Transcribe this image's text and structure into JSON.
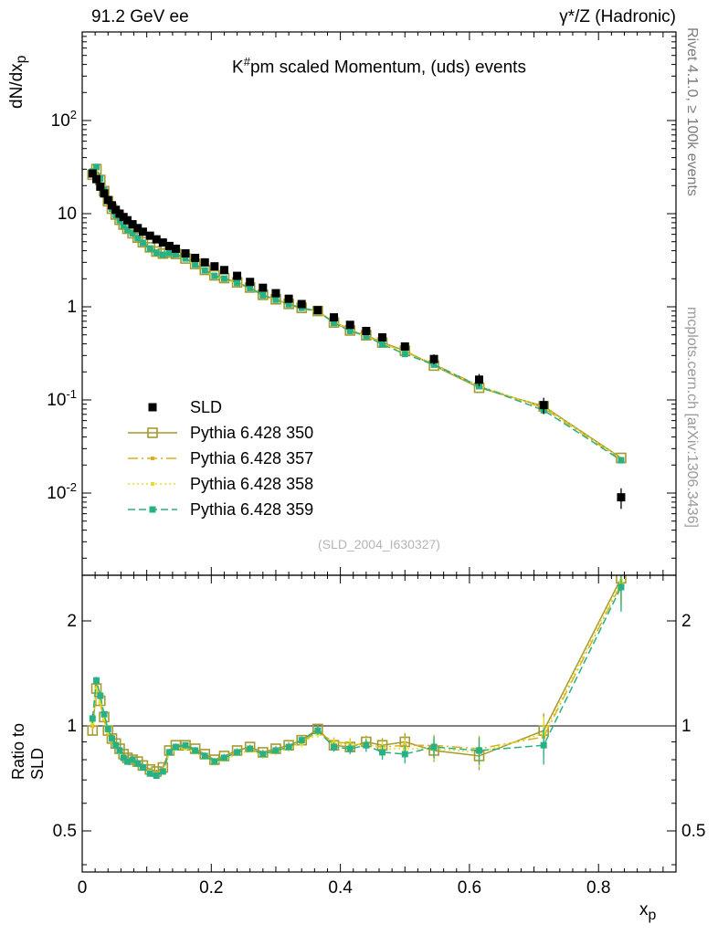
{
  "header": {
    "left": "91.2 GeV ee",
    "right": "γ*/Z (Hadronic)"
  },
  "title": {
    "base": "K",
    "sup": "#",
    "rest": "pm scaled Momentum, (uds) events"
  },
  "watermark": "(SLD_2004_I630327)",
  "side_notes": {
    "top": "Rivet 4.1.0, ≥ 100k events",
    "bottom": "mcplots.cern.ch [arXiv:1306.3436]"
  },
  "axes": {
    "y_main": {
      "base": "dN/dx",
      "sub": "p"
    },
    "y_ratio": {
      "label": "Ratio to SLD"
    },
    "x": {
      "base": "x",
      "sub": "p"
    }
  },
  "chart_data": {
    "type": "line",
    "title": "K#pm scaled Momentum, (uds) events",
    "xlabel": "x_p",
    "ylabel": "dN/dx_p",
    "ylabel_ratio": "Ratio to SLD",
    "xlim": [
      0,
      0.92
    ],
    "main_ylim": [
      0.0013,
      900
    ],
    "ratio_ylim": [
      0.38,
      2.7
    ],
    "yscale": "log",
    "xtick_labels": [
      {
        "v": 0,
        "t": "0"
      },
      {
        "v": 0.2,
        "t": "0.2"
      },
      {
        "v": 0.4,
        "t": "0.4"
      },
      {
        "v": 0.6,
        "t": "0.6"
      },
      {
        "v": 0.8,
        "t": "0.8"
      }
    ],
    "main_ytick_labels": [
      {
        "v": 100,
        "t": "10",
        "e": "2"
      },
      {
        "v": 10,
        "t": "10",
        "e": ""
      },
      {
        "v": 1,
        "t": "1",
        "e": ""
      },
      {
        "v": 0.1,
        "t": "10",
        "e": "-1"
      },
      {
        "v": 0.01,
        "t": "10",
        "e": "-2"
      }
    ],
    "ratio_ytick_labels": [
      {
        "v": 2,
        "t": "2"
      },
      {
        "v": 1,
        "t": "1"
      },
      {
        "v": 0.5,
        "t": "0.5"
      }
    ],
    "ratio_minor_ticks": [
      0.4,
      0.6,
      0.7,
      0.8,
      0.9
    ],
    "ratio_reference": 1,
    "x": [
      0.016,
      0.022,
      0.028,
      0.034,
      0.04,
      0.046,
      0.052,
      0.058,
      0.064,
      0.07,
      0.078,
      0.086,
      0.094,
      0.105,
      0.115,
      0.125,
      0.135,
      0.145,
      0.16,
      0.175,
      0.19,
      0.205,
      0.22,
      0.24,
      0.26,
      0.28,
      0.3,
      0.32,
      0.34,
      0.365,
      0.39,
      0.415,
      0.44,
      0.465,
      0.5,
      0.545,
      0.615,
      0.715,
      0.835
    ],
    "ref": {
      "name": "SLD",
      "color": "#000000",
      "line": "none",
      "marker": "square-filled",
      "marker_size": 9,
      "y": [
        27.0,
        23.5,
        19.5,
        16.5,
        14.0,
        12.3,
        11.0,
        10.0,
        9.2,
        8.5,
        7.7,
        7.0,
        6.4,
        5.8,
        5.3,
        4.9,
        4.5,
        4.2,
        3.75,
        3.35,
        3.0,
        2.72,
        2.48,
        2.15,
        1.85,
        1.6,
        1.4,
        1.22,
        1.07,
        0.92,
        0.77,
        0.64,
        0.55,
        0.47,
        0.375,
        0.275,
        0.165,
        0.088,
        0.009
      ],
      "err_rel": [
        0.05,
        0.04,
        0.035,
        0.03,
        0.03,
        0.025,
        0.025,
        0.02,
        0.02,
        0.02,
        0.02,
        0.02,
        0.02,
        0.02,
        0.02,
        0.02,
        0.02,
        0.02,
        0.02,
        0.02,
        0.02,
        0.02,
        0.022,
        0.025,
        0.027,
        0.03,
        0.033,
        0.036,
        0.04,
        0.045,
        0.05,
        0.06,
        0.07,
        0.08,
        0.1,
        0.12,
        0.15,
        0.2,
        0.25
      ]
    },
    "series": [
      {
        "name": "Pythia 6.428 350",
        "color": "#a39a32",
        "line": "solid",
        "marker": "square-open",
        "marker_size": 10,
        "ratio": [
          0.97,
          1.28,
          1.18,
          1.06,
          0.97,
          0.92,
          0.89,
          0.86,
          0.83,
          0.81,
          0.8,
          0.79,
          0.77,
          0.75,
          0.74,
          0.76,
          0.85,
          0.88,
          0.88,
          0.86,
          0.83,
          0.8,
          0.82,
          0.85,
          0.87,
          0.84,
          0.86,
          0.88,
          0.91,
          0.98,
          0.88,
          0.87,
          0.9,
          0.88,
          0.9,
          0.85,
          0.82,
          0.97,
          2.65
        ]
      },
      {
        "name": "Pythia 6.428 357",
        "color": "#dcaf1e",
        "line": "dashdot",
        "marker": "square-filled",
        "marker_size": 4,
        "ratio": [
          1.0,
          1.3,
          1.16,
          1.04,
          0.95,
          0.9,
          0.87,
          0.85,
          0.82,
          0.8,
          0.79,
          0.78,
          0.76,
          0.74,
          0.73,
          0.75,
          0.84,
          0.87,
          0.87,
          0.85,
          0.82,
          0.79,
          0.81,
          0.84,
          0.86,
          0.83,
          0.85,
          0.87,
          0.9,
          0.96,
          0.9,
          0.89,
          0.88,
          0.87,
          0.88,
          0.88,
          0.86,
          0.93,
          2.55
        ]
      },
      {
        "name": "Pythia 6.428 358",
        "color": "#e3df25",
        "line": "dotted",
        "marker": "square-filled",
        "marker_size": 4,
        "ratio": [
          1.02,
          1.27,
          1.17,
          1.05,
          0.96,
          0.91,
          0.88,
          0.84,
          0.81,
          0.79,
          0.8,
          0.78,
          0.76,
          0.74,
          0.72,
          0.74,
          0.83,
          0.86,
          0.86,
          0.84,
          0.81,
          0.78,
          0.8,
          0.83,
          0.85,
          0.82,
          0.84,
          0.86,
          0.89,
          0.95,
          0.89,
          0.88,
          0.89,
          0.86,
          0.86,
          0.86,
          0.84,
          0.95,
          2.6
        ]
      },
      {
        "name": "Pythia 6.428 359",
        "color": "#27b184",
        "line": "dashed",
        "marker": "square-filled",
        "marker_size": 7,
        "ratio": [
          1.05,
          1.35,
          1.22,
          1.08,
          0.98,
          0.92,
          0.88,
          0.85,
          0.81,
          0.79,
          0.8,
          0.78,
          0.76,
          0.73,
          0.72,
          0.74,
          0.84,
          0.87,
          0.88,
          0.85,
          0.82,
          0.79,
          0.81,
          0.84,
          0.86,
          0.83,
          0.85,
          0.87,
          0.91,
          0.97,
          0.87,
          0.86,
          0.88,
          0.84,
          0.83,
          0.87,
          0.85,
          0.88,
          2.5
        ]
      }
    ]
  }
}
